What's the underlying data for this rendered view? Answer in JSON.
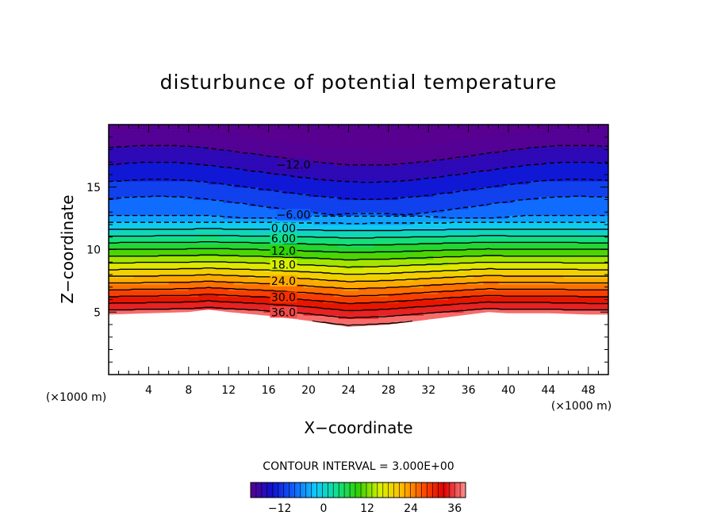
{
  "chart_data": {
    "type": "contour",
    "title": "disturbunce of potential temperature",
    "xlabel": "X−coordinate",
    "ylabel": "Z−coordinate",
    "x_unit_left": "(×1000 m)",
    "x_unit_right": "(×1000 m)",
    "xlim": [
      0,
      50
    ],
    "ylim": [
      0,
      20
    ],
    "x_ticks": [
      4,
      8,
      12,
      16,
      20,
      24,
      28,
      32,
      36,
      40,
      44,
      48
    ],
    "y_ticks": [
      5,
      10,
      15
    ],
    "contour_interval_text": "CONTOUR INTERVAL = 3.000E+00",
    "contour_interval": 3.0,
    "value_range": [
      -20,
      39
    ],
    "colormap": [
      "#5a0090",
      "#1010d0",
      "#1060ff",
      "#10c8ff",
      "#10e090",
      "#30d000",
      "#d8f000",
      "#ffc000",
      "#ff5000",
      "#e00000",
      "#ff9090"
    ],
    "colorbar_ticks": [
      "−12",
      "0",
      "12",
      "24",
      "36"
    ],
    "contour_labels": [
      {
        "text": "−12.0",
        "x": 18.5,
        "z": 16.8
      },
      {
        "text": "−6.00",
        "x": 18.5,
        "z": 12.8
      },
      {
        "text": "0.00",
        "x": 17.5,
        "z": 11.7
      },
      {
        "text": "6.00",
        "x": 17.5,
        "z": 10.9
      },
      {
        "text": "12.0",
        "x": 17.5,
        "z": 9.9
      },
      {
        "text": "18.0",
        "x": 17.5,
        "z": 8.8
      },
      {
        "text": "24.0",
        "x": 17.5,
        "z": 7.5
      },
      {
        "text": "30.0",
        "x": 17.5,
        "z": 6.2
      },
      {
        "text": "36.0",
        "x": 17.5,
        "z": 5.0
      }
    ],
    "terrain_surface": [
      [
        0,
        4.8
      ],
      [
        4,
        4.9
      ],
      [
        8,
        5.0
      ],
      [
        10,
        5.2
      ],
      [
        12,
        5.0
      ],
      [
        16,
        4.7
      ],
      [
        20,
        4.3
      ],
      [
        24,
        3.8
      ],
      [
        28,
        4.0
      ],
      [
        32,
        4.4
      ],
      [
        36,
        4.8
      ],
      [
        38,
        5.0
      ],
      [
        40,
        4.9
      ],
      [
        44,
        4.9
      ],
      [
        48,
        4.8
      ],
      [
        50,
        4.8
      ]
    ],
    "grid": false,
    "legend": "colorbar at bottom"
  }
}
